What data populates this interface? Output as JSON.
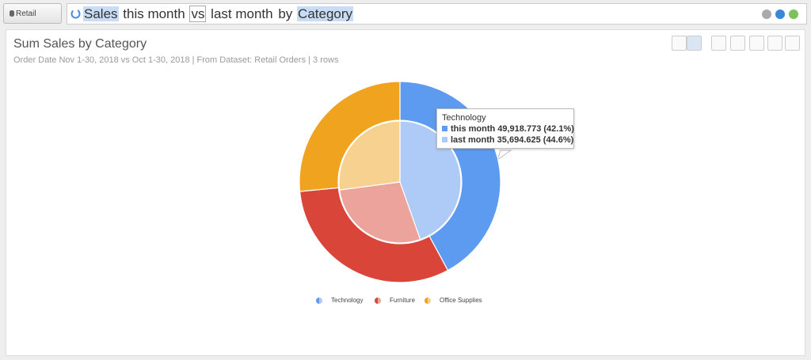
{
  "toolbar": {
    "dataset_button": "Retail Orders",
    "query": [
      {
        "text": "Sales",
        "style": "highlight"
      },
      {
        "text": "this month",
        "style": "plain"
      },
      {
        "text": "vs",
        "style": "boxed"
      },
      {
        "text": "last month",
        "style": "plain"
      },
      {
        "text": "by",
        "style": "plain"
      },
      {
        "text": "Category",
        "style": "highlight"
      }
    ]
  },
  "chart_data": {
    "type": "pie",
    "title": "Sum Sales by Category",
    "subtitle": "Order Date Nov 1-30, 2018 vs Oct 1-30, 2018 | From Dataset: Retail Orders | 3 rows",
    "categories": [
      "Technology",
      "Furniture",
      "Office Supplies"
    ],
    "series": [
      {
        "name": "this month",
        "colors": [
          "#5c9bef",
          "#da453a",
          "#efa31f"
        ],
        "values": [
          49918.773,
          37232,
          31421
        ]
      },
      {
        "name": "last month",
        "colors": [
          "#aecbf7",
          "#eca39b",
          "#f7d18f"
        ],
        "values": [
          35694.625,
          22649,
          21689
        ]
      }
    ],
    "tooltip": {
      "title": "Technology",
      "rows": [
        "this month 49,918.773 (42.1%)",
        "last month 35,694.625 (44.6%)"
      ]
    }
  }
}
